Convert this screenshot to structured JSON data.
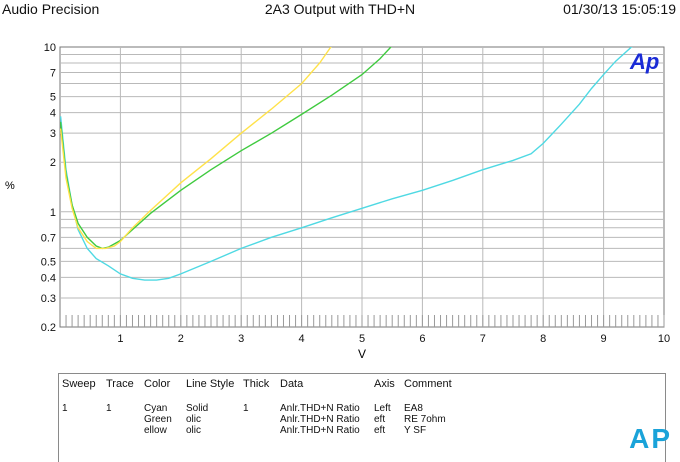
{
  "header": {
    "left": "Audio Precision",
    "center": "2A3 Output with THD+N",
    "right": "01/30/13 15:05:19"
  },
  "logo": "Ap",
  "chart_data": {
    "type": "line",
    "title": "",
    "xlabel": "V",
    "ylabel": "%",
    "xlim": [
      0,
      10
    ],
    "ylim": [
      0.2,
      10
    ],
    "yscale": "log",
    "grid": true,
    "x_ticks": [
      "1",
      "2",
      "3",
      "4",
      "5",
      "6",
      "7",
      "8",
      "9",
      "10"
    ],
    "y_ticks": [
      {
        "v": 0.2,
        "label": "0.2"
      },
      {
        "v": 0.3,
        "label": "0.3"
      },
      {
        "v": 0.4,
        "label": "0.4"
      },
      {
        "v": 0.5,
        "label": "0.5"
      },
      {
        "v": 0.7,
        "label": "0.7"
      },
      {
        "v": 1,
        "label": "1"
      },
      {
        "v": 2,
        "label": "2"
      },
      {
        "v": 3,
        "label": "3"
      },
      {
        "v": 4,
        "label": "4"
      },
      {
        "v": 5,
        "label": "5"
      },
      {
        "v": 7,
        "label": "7"
      },
      {
        "v": 10,
        "label": "10"
      }
    ],
    "series": [
      {
        "color": "#4fd9e3",
        "x": [
          0.01,
          0.1,
          0.2,
          0.3,
          0.45,
          0.6,
          0.8,
          1.0,
          1.2,
          1.4,
          1.6,
          1.8,
          2.0,
          2.5,
          3.0,
          3.5,
          4.0,
          4.5,
          5.0,
          5.5,
          6.0,
          6.5,
          7.0,
          7.5,
          7.8,
          8.0,
          8.3,
          8.6,
          8.8,
          9.0,
          9.2,
          9.5
        ],
        "y": [
          3.8,
          1.8,
          1.1,
          0.78,
          0.6,
          0.52,
          0.47,
          0.42,
          0.395,
          0.385,
          0.385,
          0.395,
          0.42,
          0.5,
          0.6,
          0.7,
          0.8,
          0.92,
          1.05,
          1.2,
          1.35,
          1.55,
          1.8,
          2.05,
          2.25,
          2.6,
          3.4,
          4.5,
          5.6,
          6.8,
          8.2,
          10.3
        ]
      },
      {
        "color": "#3fca3f",
        "x": [
          0.01,
          0.1,
          0.2,
          0.3,
          0.45,
          0.6,
          0.7,
          0.8,
          1.0,
          1.2,
          1.5,
          2.0,
          2.5,
          3.0,
          3.5,
          4.0,
          4.5,
          5.0,
          5.3,
          5.5
        ],
        "y": [
          3.5,
          1.7,
          1.1,
          0.85,
          0.7,
          0.62,
          0.6,
          0.61,
          0.67,
          0.78,
          0.98,
          1.35,
          1.8,
          2.35,
          3.0,
          3.9,
          5.1,
          6.8,
          8.5,
          10.2
        ]
      },
      {
        "color": "#ffe24a",
        "x": [
          0.01,
          0.1,
          0.2,
          0.3,
          0.45,
          0.6,
          0.75,
          0.9,
          1.0,
          1.2,
          1.5,
          2.0,
          2.5,
          3.0,
          3.5,
          4.0,
          4.3,
          4.5
        ],
        "y": [
          3.2,
          1.6,
          1.05,
          0.8,
          0.66,
          0.6,
          0.6,
          0.62,
          0.66,
          0.8,
          1.02,
          1.5,
          2.1,
          3.0,
          4.2,
          6.0,
          8.0,
          10.2
        ]
      }
    ]
  },
  "legend": {
    "headers": [
      "Sweep",
      "Trace",
      "Color",
      "Line Style",
      "Thick",
      "Data",
      "Axis",
      "Comment"
    ],
    "rows": [
      {
        "sweep": "1",
        "trace": "1",
        "color": "Cyan",
        "style": "Solid",
        "thick": "1",
        "data": "Anlr.THD+N Ratio",
        "axis": "Left",
        "comment": "EA8"
      },
      {
        "sweep": "",
        "trace": "",
        "color": "Green",
        "style": "olic",
        "thick": "",
        "data": "Anlr.THD+N Ratio",
        "axis": "eft",
        "comment": "RE 7ohm"
      },
      {
        "sweep": "",
        "trace": "",
        "color": "ellow",
        "style": "olic",
        "thick": "",
        "data": "Anlr.THD+N Ratio",
        "axis": "eft",
        "comment": "Y SF"
      }
    ]
  },
  "watermark": "AP"
}
